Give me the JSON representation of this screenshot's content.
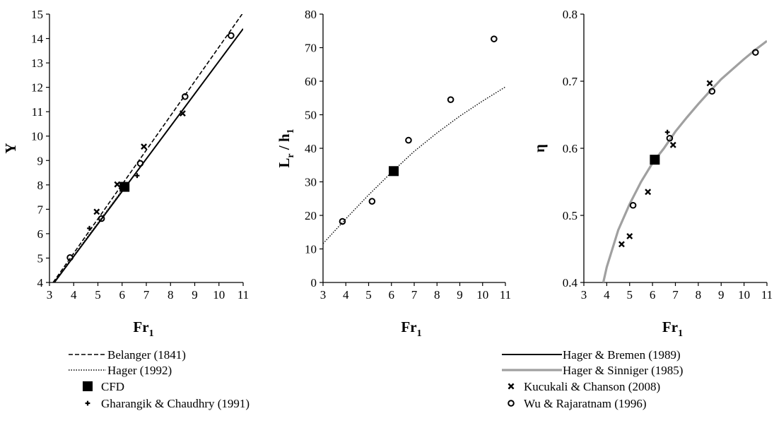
{
  "chart_data": [
    {
      "type": "scatter",
      "id": "panel-y",
      "xlabel": "Fr",
      "xlabel_sub": "1",
      "ylabel": "Y",
      "ylabel_sub": "",
      "xlim": [
        3,
        11
      ],
      "ylim": [
        4,
        15
      ],
      "xticks": [
        "3",
        "4",
        "5",
        "6",
        "7",
        "8",
        "9",
        "10",
        "11"
      ],
      "yticks": [
        "4",
        "5",
        "6",
        "7",
        "8",
        "9",
        "10",
        "11",
        "12",
        "13",
        "14",
        "15"
      ],
      "grid": false,
      "lines": [
        {
          "series": "Belanger (1841)",
          "style": "dashed",
          "x": [
            3.15,
            11.0
          ],
          "y": [
            4.0,
            15.06
          ]
        },
        {
          "series": "Hager (1992)",
          "style": "dotted",
          "x": [
            3.1,
            6.2
          ],
          "y": [
            3.9,
            8.05
          ]
        },
        {
          "series": "Hager & Bremen (1989)",
          "style": "solid",
          "x": [
            3.2,
            11.0
          ],
          "y": [
            4.0,
            14.4
          ]
        }
      ],
      "points": [
        {
          "series": "CFD",
          "marker": "square",
          "x": [
            6.1
          ],
          "y": [
            7.92
          ]
        },
        {
          "series": "Gharangik & Chaudhry (1991)",
          "marker": "plus",
          "x": [
            4.65,
            6.62
          ],
          "y": [
            6.22,
            8.38
          ]
        },
        {
          "series": "Kucukali & Chanson (2008)",
          "marker": "x",
          "x": [
            4.95,
            5.8,
            6.9,
            8.5
          ],
          "y": [
            6.9,
            8.02,
            9.57,
            10.93
          ]
        },
        {
          "series": "Wu & Rajaratnam (1996)",
          "marker": "circle",
          "x": [
            3.85,
            5.15,
            6.75,
            8.6,
            10.5
          ],
          "y": [
            5.02,
            6.62,
            8.88,
            11.62,
            14.12
          ]
        }
      ]
    },
    {
      "type": "scatter",
      "id": "panel-lr",
      "xlabel": "Fr",
      "xlabel_sub": "1",
      "ylabel": "L / h",
      "ylabel_parts": [
        {
          "text": "L",
          "sub": "r"
        },
        {
          "text": " / h",
          "sub": "1"
        }
      ],
      "xlim": [
        3,
        11
      ],
      "ylim": [
        0,
        80
      ],
      "xticks": [
        "3",
        "4",
        "5",
        "6",
        "7",
        "8",
        "9",
        "10",
        "11"
      ],
      "yticks": [
        "0",
        "10",
        "20",
        "30",
        "40",
        "50",
        "60",
        "70",
        "80"
      ],
      "grid": false,
      "lines": [
        {
          "series": "Hager (1992)",
          "style": "dotted",
          "x": [
            3,
            4,
            5,
            6,
            7,
            8,
            9,
            10,
            11
          ],
          "y": [
            11.6,
            19.0,
            26.1,
            32.8,
            39.1,
            44.6,
            49.6,
            54.1,
            58.3
          ]
        }
      ],
      "points": [
        {
          "series": "CFD",
          "marker": "square",
          "x": [
            6.1
          ],
          "y": [
            33.2
          ]
        },
        {
          "series": "Wu & Rajaratnam (1996)",
          "marker": "circle",
          "x": [
            3.85,
            5.15,
            6.75,
            8.6,
            10.5
          ],
          "y": [
            18.2,
            24.2,
            42.4,
            54.5,
            72.6
          ]
        }
      ]
    },
    {
      "type": "scatter",
      "id": "panel-eta",
      "xlabel": "Fr",
      "xlabel_sub": "1",
      "ylabel": "η",
      "ylabel_sub": "",
      "xlim": [
        3,
        11
      ],
      "ylim": [
        0.4,
        0.8
      ],
      "xticks": [
        "3",
        "4",
        "5",
        "6",
        "7",
        "8",
        "9",
        "10",
        "11"
      ],
      "yticks": [
        "0.4",
        "0.5",
        "0.6",
        "0.7",
        "0.8"
      ],
      "grid": false,
      "lines": [
        {
          "series": "Hager & Sinniger (1985)",
          "style": "gray-thick",
          "x": [
            3.85,
            4.0,
            4.5,
            5.0,
            5.5,
            6.0,
            6.5,
            7.0,
            7.5,
            8.0,
            8.5,
            9.0,
            9.5,
            10.0,
            10.5,
            11.0
          ],
          "y": [
            0.4,
            0.423,
            0.478,
            0.517,
            0.55,
            0.578,
            0.6,
            0.625,
            0.646,
            0.666,
            0.685,
            0.703,
            0.718,
            0.733,
            0.747,
            0.76
          ]
        }
      ],
      "points": [
        {
          "series": "CFD",
          "marker": "square",
          "x": [
            6.1
          ],
          "y": [
            0.583
          ]
        },
        {
          "series": "Gharangik & Chaudhry (1991)",
          "marker": "plus",
          "x": [
            6.65
          ],
          "y": [
            0.624
          ]
        },
        {
          "series": "Kucukali & Chanson (2008)",
          "marker": "x",
          "x": [
            4.65,
            5.0,
            5.8,
            6.9,
            8.5
          ],
          "y": [
            0.457,
            0.469,
            0.535,
            0.605,
            0.697
          ]
        },
        {
          "series": "Wu & Rajaratnam (1996)",
          "marker": "circle",
          "x": [
            5.15,
            6.75,
            8.6,
            10.5
          ],
          "y": [
            0.515,
            0.615,
            0.685,
            0.743
          ]
        }
      ]
    }
  ],
  "legend": {
    "placement": "bottom",
    "entries": [
      {
        "label": "Belanger (1841)",
        "kind": "dashed"
      },
      {
        "label": "Hager & Bremen (1989)",
        "kind": "solid"
      },
      {
        "label": "Hager (1992)",
        "kind": "dotted"
      },
      {
        "label": "Hager & Sinniger (1985)",
        "kind": "gray-thick"
      },
      {
        "label": "CFD",
        "kind": "square"
      },
      {
        "label": "Kucukali & Chanson (2008)",
        "kind": "x"
      },
      {
        "label": "Gharangik & Chaudhry (1991)",
        "kind": "plus"
      },
      {
        "label": "Wu & Rajaratnam (1996)",
        "kind": "circle"
      }
    ]
  },
  "colors": {
    "ink": "#000000",
    "gray_line": "#a0a0a0",
    "background": "#ffffff"
  }
}
